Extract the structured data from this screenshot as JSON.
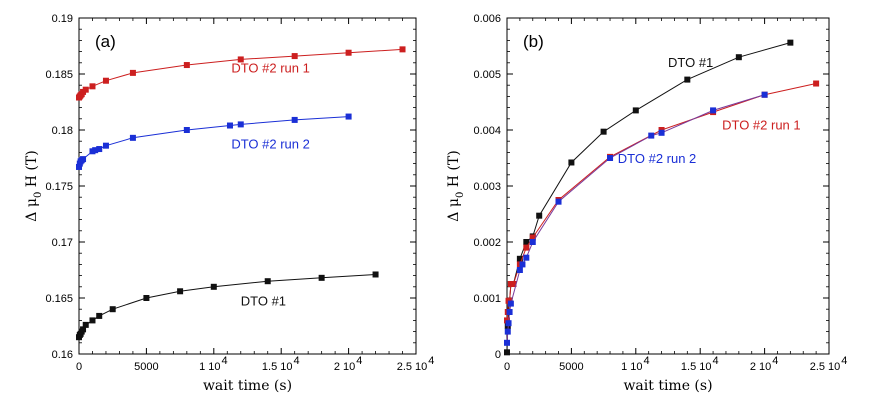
{
  "chart_data": [
    {
      "type": "line",
      "panel_label": "(a)",
      "xlabel": "wait time (s)",
      "ylabel_main": "Δ μ",
      "ylabel_sub": "0",
      "ylabel_tail": " H (T)",
      "xlim": [
        0,
        25000
      ],
      "ylim": [
        0.16,
        0.19
      ],
      "x_ticks": [
        {
          "v": 0,
          "t": "0"
        },
        {
          "v": 5000,
          "t": "5000"
        },
        {
          "v": 10000,
          "t": "1 10"
        },
        {
          "v": 15000,
          "t": "1.5 10"
        },
        {
          "v": 20000,
          "t": "2 10"
        },
        {
          "v": 25000,
          "t": "2.5 10"
        }
      ],
      "x_tick_exp": "4",
      "y_ticks": [
        {
          "v": 0.16,
          "t": "0.16"
        },
        {
          "v": 0.165,
          "t": "0.165"
        },
        {
          "v": 0.17,
          "t": "0.17"
        },
        {
          "v": 0.175,
          "t": "0.175"
        },
        {
          "v": 0.18,
          "t": "0.18"
        },
        {
          "v": 0.185,
          "t": "0.185"
        },
        {
          "v": 0.19,
          "t": "0.19"
        }
      ],
      "series": [
        {
          "name": "DTO #2 run 1",
          "color": "#cc1f1f",
          "line_color": "#cc1f1f",
          "label_pos": [
            11300,
            0.1855
          ],
          "x": [
            0,
            60,
            120,
            200,
            300,
            500,
            1000,
            2000,
            4000,
            8000,
            12000,
            16000,
            20000,
            24000
          ],
          "y": [
            0.1829,
            0.183,
            0.1831,
            0.1832,
            0.1834,
            0.1836,
            0.1839,
            0.1844,
            0.1851,
            0.1858,
            0.1863,
            0.1866,
            0.1869,
            0.1872
          ]
        },
        {
          "name": "DTO #2 run 2",
          "color": "#1a2fd6",
          "line_color": "#1a2fd6",
          "label_pos": [
            11300,
            0.1787
          ],
          "x": [
            0,
            60,
            120,
            200,
            300,
            1000,
            1200,
            1500,
            2000,
            4000,
            8000,
            11200,
            12000,
            16000,
            20000
          ],
          "y": [
            0.1767,
            0.177,
            0.1772,
            0.1773,
            0.1774,
            0.1781,
            0.1782,
            0.1783,
            0.1786,
            0.1793,
            0.18,
            0.1804,
            0.1805,
            0.1809,
            0.1812
          ]
        },
        {
          "name": "DTO #1",
          "color": "#111111",
          "line_color": "#111111",
          "label_pos": [
            12000,
            0.1647
          ],
          "x": [
            0,
            60,
            120,
            200,
            300,
            500,
            1000,
            1500,
            2500,
            5000,
            7500,
            10000,
            14000,
            18000,
            22000
          ],
          "y": [
            0.1615,
            0.1617,
            0.1618,
            0.162,
            0.1622,
            0.1626,
            0.163,
            0.1634,
            0.164,
            0.165,
            0.1656,
            0.166,
            0.1665,
            0.1668,
            0.1671
          ]
        }
      ]
    },
    {
      "type": "line",
      "panel_label": "(b)",
      "xlabel": "wait time (s)",
      "ylabel_main": "Δ μ",
      "ylabel_sub": "0",
      "ylabel_tail": " H (T)",
      "xlim": [
        0,
        25000
      ],
      "ylim": [
        0,
        0.006
      ],
      "x_ticks": [
        {
          "v": 0,
          "t": "0"
        },
        {
          "v": 5000,
          "t": "5000"
        },
        {
          "v": 10000,
          "t": "1 10"
        },
        {
          "v": 15000,
          "t": "1.5 10"
        },
        {
          "v": 20000,
          "t": "2 10"
        },
        {
          "v": 25000,
          "t": "2.5 10"
        }
      ],
      "x_tick_exp": "4",
      "y_ticks": [
        {
          "v": 0,
          "t": "0"
        },
        {
          "v": 0.001,
          "t": "0.001"
        },
        {
          "v": 0.002,
          "t": "0.002"
        },
        {
          "v": 0.003,
          "t": "0.003"
        },
        {
          "v": 0.004,
          "t": "0.004"
        },
        {
          "v": 0.005,
          "t": "0.005"
        },
        {
          "v": 0.006,
          "t": "0.006"
        }
      ],
      "series": [
        {
          "name": "DTO #1",
          "color": "#111111",
          "line_color": "#111111",
          "label_pos": [
            12500,
            0.0052
          ],
          "x": [
            0,
            60,
            120,
            200,
            300,
            500,
            1000,
            1500,
            2000,
            2500,
            5000,
            7500,
            10000,
            14000,
            18000,
            22000
          ],
          "y": [
            3e-05,
            0.0005,
            0.00075,
            0.00095,
            0.00125,
            0.00125,
            0.0017,
            0.002,
            0.0021,
            0.00247,
            0.00342,
            0.00397,
            0.00435,
            0.0049,
            0.0053,
            0.00556
          ]
        },
        {
          "name": "DTO #2 run 1",
          "color": "#cc1f1f",
          "line_color": "#cc1f1f",
          "label_pos": [
            16700,
            0.00408
          ],
          "x": [
            0,
            60,
            120,
            200,
            300,
            500,
            1000,
            1500,
            2000,
            4000,
            8000,
            12000,
            16000,
            20000,
            24000
          ],
          "y": [
            0.0006,
            0.00075,
            0.00095,
            0.00095,
            0.00125,
            0.00125,
            0.0016,
            0.0019,
            0.00208,
            0.00275,
            0.00352,
            0.004,
            0.00432,
            0.00463,
            0.00483
          ]
        },
        {
          "name": "DTO #2 run 2",
          "color": "#1a2fd6",
          "line_color": "#7a3a9a",
          "label_pos": [
            8600,
            0.00348
          ],
          "x": [
            0,
            60,
            120,
            200,
            300,
            1000,
            1200,
            1500,
            2000,
            4000,
            8000,
            11200,
            12000,
            16000,
            20000
          ],
          "y": [
            0.0002,
            0.0004,
            0.00055,
            0.00075,
            0.0009,
            0.0015,
            0.0016,
            0.00172,
            0.002,
            0.00272,
            0.0035,
            0.0039,
            0.00395,
            0.00435,
            0.00463
          ]
        }
      ]
    }
  ]
}
